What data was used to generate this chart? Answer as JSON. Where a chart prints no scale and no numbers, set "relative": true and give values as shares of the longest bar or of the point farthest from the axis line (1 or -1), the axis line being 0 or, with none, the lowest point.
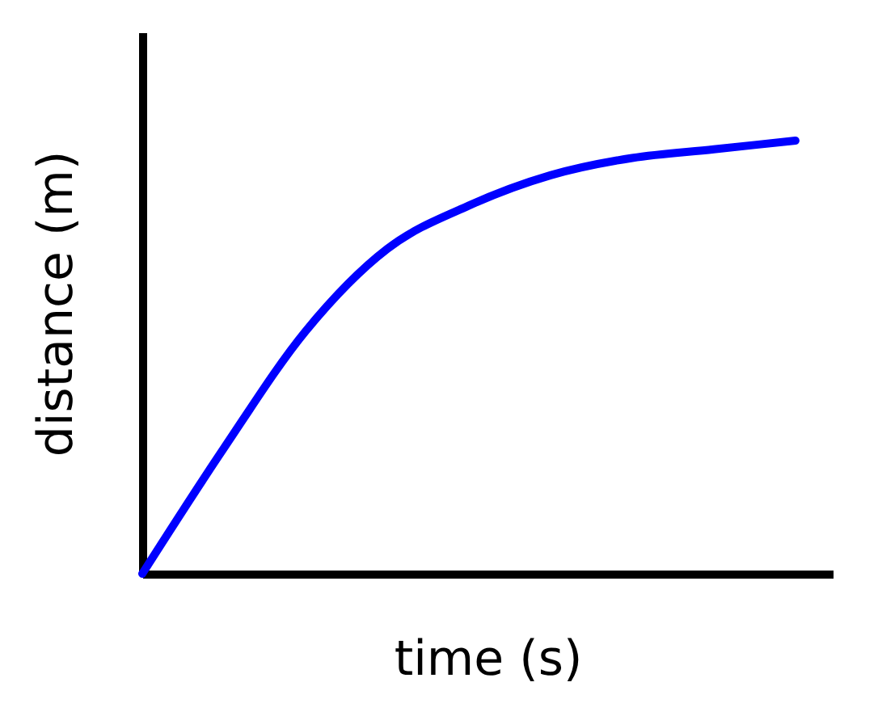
{
  "chart_data": {
    "type": "line",
    "relative": true,
    "xlabel": "time (s)",
    "ylabel": "distance (m)",
    "categories": [
      null,
      null,
      null,
      null,
      null,
      null,
      null,
      null,
      null
    ],
    "series": [
      {
        "color": "#0000ff",
        "values": [
          0,
          0.29,
          0.56,
          0.75,
          0.85,
          0.92,
          0.96,
          0.98,
          1
        ]
      }
    ],
    "grid": false,
    "marker": "none",
    "line_style": "solid",
    "tick_labels": false
  }
}
